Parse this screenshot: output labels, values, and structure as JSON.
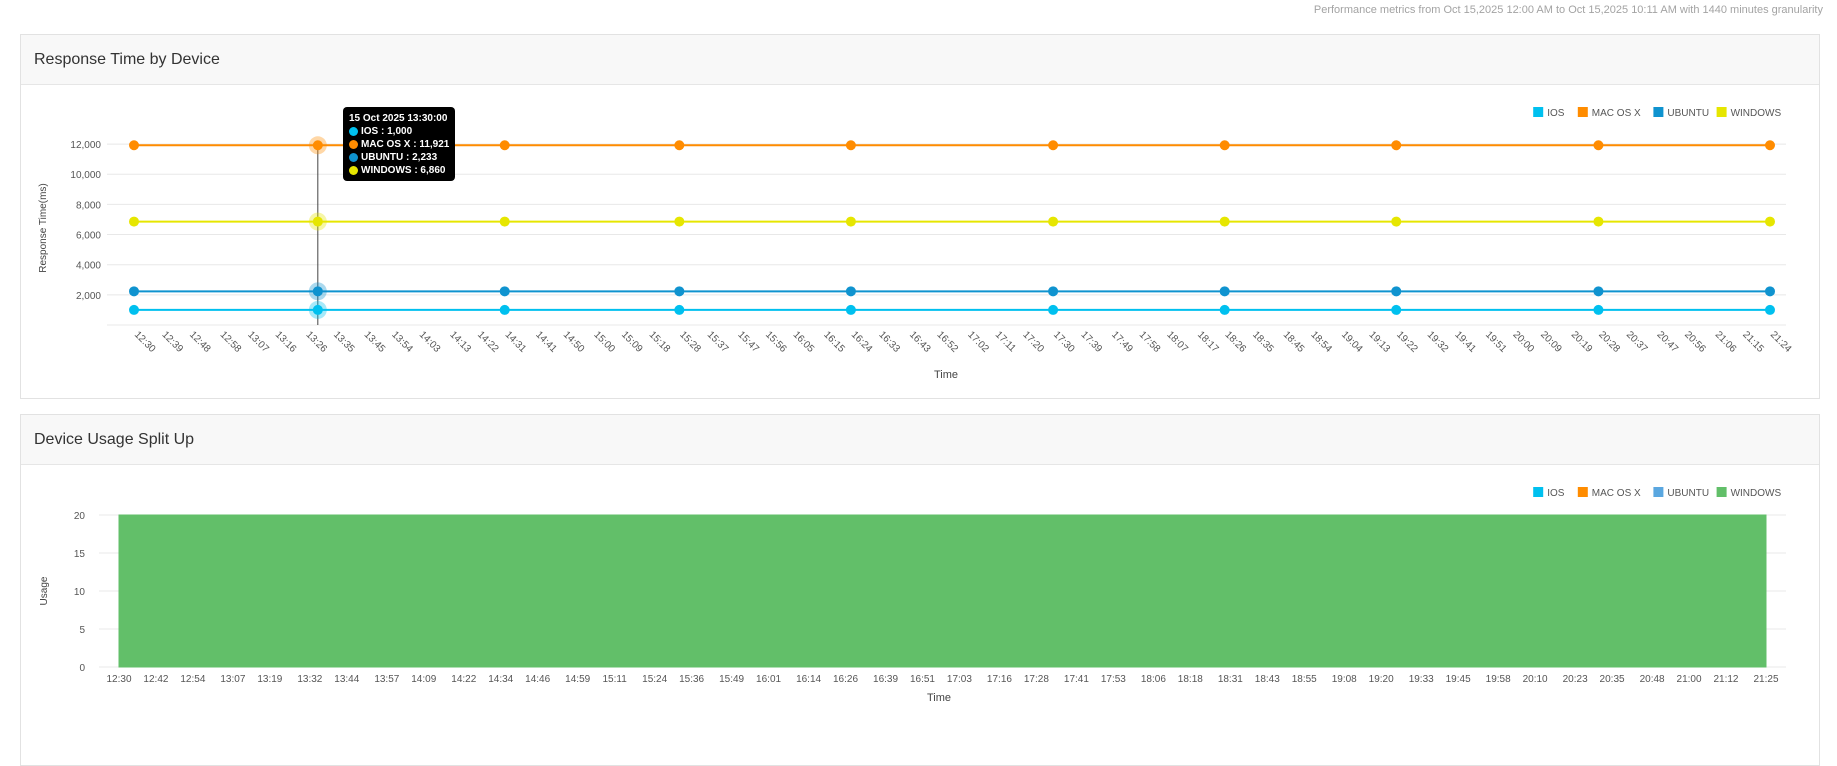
{
  "summary_text": "Performance metrics from Oct 15,2025 12:00 AM to Oct 15,2025 10:11 AM with 1440 minutes granularity",
  "colors": {
    "ios": "#00c0ef",
    "mac": "#ff8c00",
    "ubuntu": "#0f93cf",
    "windows": "#e6e600",
    "usage_fill": "#62bf69",
    "usage_ubuntu": "#5aa7e0"
  },
  "panels": {
    "response": {
      "title": "Response Time by Device"
    },
    "usage": {
      "title": "Device Usage Split Up"
    }
  },
  "tooltip": {
    "title": "15 Oct 2025 13:30:00",
    "rows": [
      "IOS : 1,000",
      "MAC OS X : 11,921",
      "UBUNTU : 2,233",
      "WINDOWS : 6,860"
    ]
  },
  "chart_data": [
    {
      "type": "line",
      "title": "Response Time by Device",
      "xlabel": "Time",
      "ylabel": "Response Time(ms)",
      "ylim": [
        0,
        13000
      ],
      "yticks": [
        2000,
        4000,
        6000,
        8000,
        10000,
        12000
      ],
      "ytick_labels": [
        "2,000",
        "4,000",
        "6,000",
        "8,000",
        "10,000",
        "12,000"
      ],
      "grid": true,
      "legend_position": "top-right",
      "x_tick_labels": [
        "12:30",
        "12:39",
        "12:48",
        "12:58",
        "13:07",
        "13:16",
        "13:26",
        "13:35",
        "13:45",
        "13:54",
        "14:03",
        "14:13",
        "14:22",
        "14:31",
        "14:41",
        "14:50",
        "15:00",
        "15:09",
        "15:18",
        "15:28",
        "15:37",
        "15:47",
        "15:56",
        "16:05",
        "16:15",
        "16:24",
        "16:33",
        "16:43",
        "16:52",
        "17:02",
        "17:11",
        "17:20",
        "17:30",
        "17:39",
        "17:49",
        "17:58",
        "18:07",
        "18:17",
        "18:26",
        "18:35",
        "18:45",
        "18:54",
        "19:04",
        "19:13",
        "19:22",
        "19:32",
        "19:41",
        "19:51",
        "20:00",
        "20:09",
        "20:19",
        "20:28",
        "20:37",
        "20:47",
        "20:56",
        "21:06",
        "21:15",
        "21:24"
      ],
      "x": [
        "12:30",
        "13:30",
        "14:31",
        "15:28",
        "16:24",
        "17:30",
        "18:26",
        "19:22",
        "20:28",
        "21:24"
      ],
      "series": [
        {
          "name": "IOS",
          "color": "#00c0ef",
          "values": [
            1000,
            1000,
            1000,
            1000,
            1000,
            1000,
            1000,
            1000,
            1000,
            1000
          ]
        },
        {
          "name": "MAC OS X",
          "color": "#ff8c00",
          "values": [
            11921,
            11921,
            11921,
            11921,
            11921,
            11921,
            11921,
            11921,
            11921,
            11921
          ]
        },
        {
          "name": "UBUNTU",
          "color": "#0f93cf",
          "values": [
            2233,
            2233,
            2233,
            2233,
            2233,
            2233,
            2233,
            2233,
            2233,
            2233
          ]
        },
        {
          "name": "WINDOWS",
          "color": "#e6e600",
          "values": [
            6860,
            6860,
            6860,
            6860,
            6860,
            6860,
            6860,
            6860,
            6860,
            6860
          ]
        }
      ],
      "highlighted_x": "13:30"
    },
    {
      "type": "area",
      "title": "Device Usage Split Up",
      "xlabel": "Time",
      "ylabel": "Usage",
      "ylim": [
        0,
        20
      ],
      "yticks": [
        0,
        5,
        10,
        15,
        20
      ],
      "ytick_labels": [
        "0",
        "5",
        "10",
        "15",
        "20"
      ],
      "grid": true,
      "legend_position": "top-right",
      "x_tick_labels": [
        "12:30",
        "12:42",
        "12:54",
        "13:07",
        "13:19",
        "13:32",
        "13:44",
        "13:57",
        "14:09",
        "14:22",
        "14:34",
        "14:46",
        "14:59",
        "15:11",
        "15:24",
        "15:36",
        "15:49",
        "16:01",
        "16:14",
        "16:26",
        "16:39",
        "16:51",
        "17:03",
        "17:16",
        "17:28",
        "17:41",
        "17:53",
        "18:06",
        "18:18",
        "18:31",
        "18:43",
        "18:55",
        "19:08",
        "19:20",
        "19:33",
        "19:45",
        "19:58",
        "20:10",
        "20:23",
        "20:35",
        "20:48",
        "21:00",
        "21:12",
        "21:25"
      ],
      "x_range": [
        "12:30",
        "21:25"
      ],
      "series": [
        {
          "name": "IOS",
          "color": "#00c0ef",
          "values": [
            0,
            0
          ]
        },
        {
          "name": "MAC OS X",
          "color": "#ff8c00",
          "values": [
            0,
            0
          ]
        },
        {
          "name": "UBUNTU",
          "color": "#5aa7e0",
          "values": [
            0,
            0
          ]
        },
        {
          "name": "WINDOWS",
          "color": "#62bf69",
          "values": [
            20,
            20
          ]
        }
      ]
    }
  ]
}
